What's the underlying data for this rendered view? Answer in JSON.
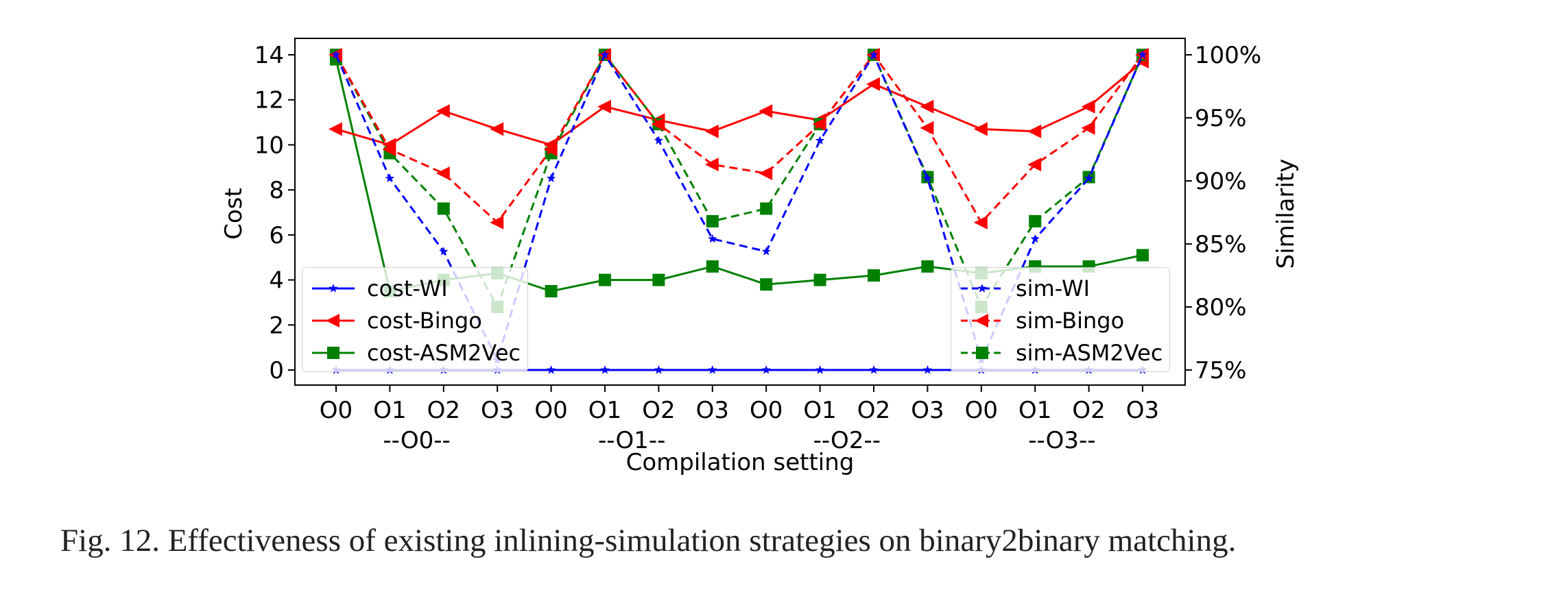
{
  "chart_data": {
    "type": "line",
    "title": "",
    "xlabel": "Compilation setting",
    "ylabel_left": "Cost",
    "ylabel_right": "Similarity",
    "ylim_left": [
      0,
      14
    ],
    "yticks_left": [
      "0",
      "2",
      "4",
      "6",
      "8",
      "10",
      "12",
      "14"
    ],
    "ylim_right": [
      75,
      100
    ],
    "yticks_right": [
      "75%",
      "80%",
      "85%",
      "90%",
      "95%",
      "100%"
    ],
    "categories": [
      "O0",
      "O1",
      "O2",
      "O3",
      "O0",
      "O1",
      "O2",
      "O3",
      "O0",
      "O1",
      "O2",
      "O3",
      "O0",
      "O1",
      "O2",
      "O3"
    ],
    "groups": [
      "--O0--",
      "--O1--",
      "--O2--",
      "--O3--"
    ],
    "grid": false,
    "legend_left_position": "lower-left",
    "legend_right_position": "lower-right",
    "colors": {
      "wi": "#0000ff",
      "bingo": "#ff0000",
      "asm2vec": "#008000"
    },
    "series": [
      {
        "name": "cost-WI",
        "axis": "left",
        "style": "solid",
        "marker": "star",
        "color": "#0000ff",
        "values": [
          0,
          0,
          0,
          0,
          0,
          0,
          0,
          0,
          0,
          0,
          0,
          0,
          0,
          0,
          0,
          0
        ]
      },
      {
        "name": "cost-Bingo",
        "axis": "left",
        "style": "solid",
        "marker": "triangle-left",
        "color": "#ff0000",
        "values": [
          10.7,
          10.0,
          11.5,
          10.7,
          10.0,
          11.7,
          11.1,
          10.6,
          11.5,
          11.1,
          12.7,
          11.7,
          10.7,
          10.6,
          11.7,
          13.7
        ]
      },
      {
        "name": "cost-ASM2Vec",
        "axis": "left",
        "style": "solid",
        "marker": "square",
        "color": "#008000",
        "values": [
          13.8,
          3.5,
          4.0,
          4.3,
          3.5,
          4.0,
          4.0,
          4.6,
          3.8,
          4.0,
          4.2,
          4.6,
          4.3,
          4.6,
          4.6,
          5.1
        ]
      },
      {
        "name": "sim-WI",
        "axis": "right",
        "style": "dashed",
        "marker": "star",
        "color": "#0000ff",
        "values": [
          100,
          90.2,
          84.4,
          75.8,
          90.2,
          100,
          93.2,
          85.4,
          84.4,
          93.2,
          100,
          90.2,
          75.8,
          85.4,
          90.2,
          100
        ]
      },
      {
        "name": "sim-Bingo",
        "axis": "right",
        "style": "dashed",
        "marker": "triangle-left",
        "color": "#ff0000",
        "values": [
          100,
          92.5,
          90.6,
          86.7,
          92.5,
          100,
          94.5,
          91.3,
          90.6,
          94.5,
          100,
          94.2,
          86.7,
          91.3,
          94.2,
          100
        ]
      },
      {
        "name": "sim-ASM2Vec",
        "axis": "right",
        "style": "dashed",
        "marker": "square",
        "color": "#008000",
        "values": [
          100,
          92.2,
          87.8,
          80,
          92.2,
          100,
          94.5,
          86.8,
          87.8,
          94.5,
          100,
          90.3,
          80,
          86.8,
          90.3,
          100
        ]
      }
    ]
  },
  "caption": "Fig. 12.  Effectiveness of existing inlining-simulation strategies on binary2binary matching."
}
